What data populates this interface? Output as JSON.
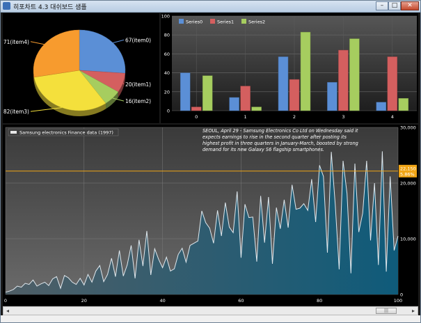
{
  "window": {
    "title": "히포차트 4.3 대쉬보드 샘플",
    "buttons": {
      "minimize": "–",
      "maximize": "□",
      "close": "✕"
    },
    "icon": "app-icon"
  },
  "pie": {
    "slices": [
      {
        "label": "67(item0)",
        "value": 67,
        "color": "#5b8fd6"
      },
      {
        "label": "20(item1)",
        "value": 20,
        "color": "#d45f5f"
      },
      {
        "label": "16(item2)",
        "value": 16,
        "color": "#a6cd5f"
      },
      {
        "label": "82(item3)",
        "value": 82,
        "color": "#f4e03c"
      },
      {
        "label": "71(item4)",
        "value": 71,
        "color": "#f79b2e"
      }
    ]
  },
  "chart_data": [
    {
      "type": "bar",
      "categories": [
        "0",
        "1",
        "2",
        "3",
        "4"
      ],
      "series": [
        {
          "name": "Series0",
          "values": [
            40,
            14,
            57,
            30,
            9
          ],
          "color": "#5b8fd6"
        },
        {
          "name": "Series1",
          "values": [
            4,
            26,
            33,
            64,
            57
          ],
          "color": "#d45f5f"
        },
        {
          "name": "Series2",
          "values": [
            37,
            4,
            83,
            76,
            13
          ],
          "color": "#a6cd5f"
        }
      ],
      "ylim": [
        0,
        100
      ],
      "yticks": [
        "0",
        "20",
        "40",
        "60",
        "80",
        "100"
      ],
      "legend": "top-left",
      "grid": true
    },
    {
      "type": "area",
      "title": "Samsung electronics Finance data (1997)",
      "annotation": "SEOUL, April 29 - Samsung Electronics Co Ltd on Wednesday said it expects earnings to rise in the second quarter after posting its highest profit in three quarters in January-March, boosted by strong demand for its new Galaxy S6 flagship smartphones.",
      "x": [
        0,
        1,
        2,
        3,
        4,
        5,
        6,
        7,
        8,
        9,
        10,
        11,
        12,
        13,
        14,
        15,
        16,
        17,
        18,
        19,
        20,
        21,
        22,
        23,
        24,
        25,
        26,
        27,
        28,
        29,
        30,
        31,
        32,
        33,
        34,
        35,
        36,
        37,
        38,
        39,
        40,
        41,
        42,
        43,
        44,
        45,
        46,
        47,
        48,
        49,
        50,
        51,
        52,
        53,
        54,
        55,
        56,
        57,
        58,
        59,
        60,
        61,
        62,
        63,
        64,
        65,
        66,
        67,
        68,
        69,
        70,
        71,
        72,
        73,
        74,
        75,
        76,
        77,
        78,
        79,
        80,
        81,
        82,
        83,
        84,
        85,
        86,
        87,
        88,
        89,
        90,
        91,
        92,
        93,
        94,
        95,
        96,
        97,
        98,
        99,
        100
      ],
      "y": [
        400,
        600,
        900,
        1500,
        1300,
        2000,
        1800,
        2600,
        1500,
        1900,
        2200,
        1600,
        2800,
        3200,
        1100,
        3400,
        3000,
        2200,
        1800,
        2900,
        1700,
        3600,
        2200,
        4200,
        5200,
        2300,
        3600,
        6500,
        3200,
        7900,
        3300,
        5300,
        8800,
        2900,
        9800,
        5100,
        11400,
        3500,
        8200,
        6300,
        4800,
        6700,
        4200,
        4600,
        7200,
        8300,
        5800,
        8800,
        9200,
        9600,
        15000,
        12900,
        11900,
        9200,
        15100,
        10500,
        16500,
        12100,
        11100,
        18500,
        6600,
        16200,
        13800,
        13900,
        5900,
        17700,
        9300,
        17500,
        5500,
        15600,
        11800,
        17000,
        12000,
        19700,
        15300,
        15500,
        16300,
        15100,
        20700,
        13000,
        23200,
        21200,
        7500,
        25600,
        16100,
        4500,
        24000,
        18100,
        3800,
        23500,
        11200,
        14600,
        24000,
        9700,
        20000,
        5300,
        25700,
        4100,
        21200,
        7900,
        10500
      ],
      "xlim": [
        0,
        100
      ],
      "ylim": [
        0,
        30000
      ],
      "xticks": [
        "0",
        "20",
        "40",
        "60",
        "80",
        "100"
      ],
      "yticks": [
        "0",
        "10,000",
        "20,000",
        "30,000"
      ],
      "reference_value": 22150,
      "reference_labels": [
        "22,150",
        "5.86%"
      ],
      "grid": true
    }
  ],
  "scrollbar": {
    "left_arrow": "◂",
    "right_arrow": "▸",
    "thumb": "|||"
  }
}
